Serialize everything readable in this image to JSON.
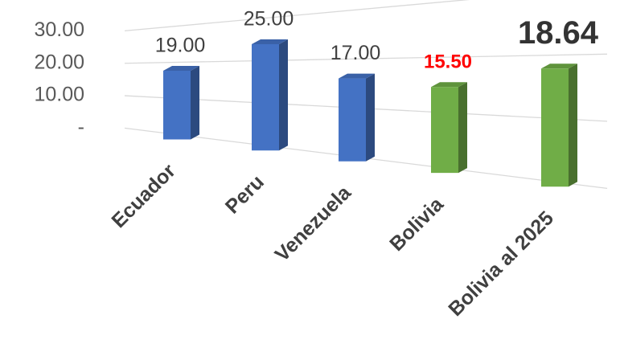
{
  "chart_data": {
    "type": "bar",
    "categories": [
      "Ecuador",
      "Peru",
      "Venezuela",
      "Bolivia",
      "Bolivia al 2025"
    ],
    "values": [
      19,
      25,
      17,
      15.5,
      18.64
    ],
    "value_labels": [
      "19.00",
      "25.00",
      "17.00",
      "15.50",
      "18.64"
    ],
    "colors": [
      "#4472c4",
      "#4472c4",
      "#4472c4",
      "#70ad47",
      "#70ad47"
    ],
    "ylim": [
      0,
      30
    ],
    "yticks": [
      {
        "value": 0,
        "label": "-"
      },
      {
        "value": 10,
        "label": "10.00"
      },
      {
        "value": 20,
        "label": "20.00"
      },
      {
        "value": 30,
        "label": "30.00"
      }
    ],
    "grid": true
  }
}
